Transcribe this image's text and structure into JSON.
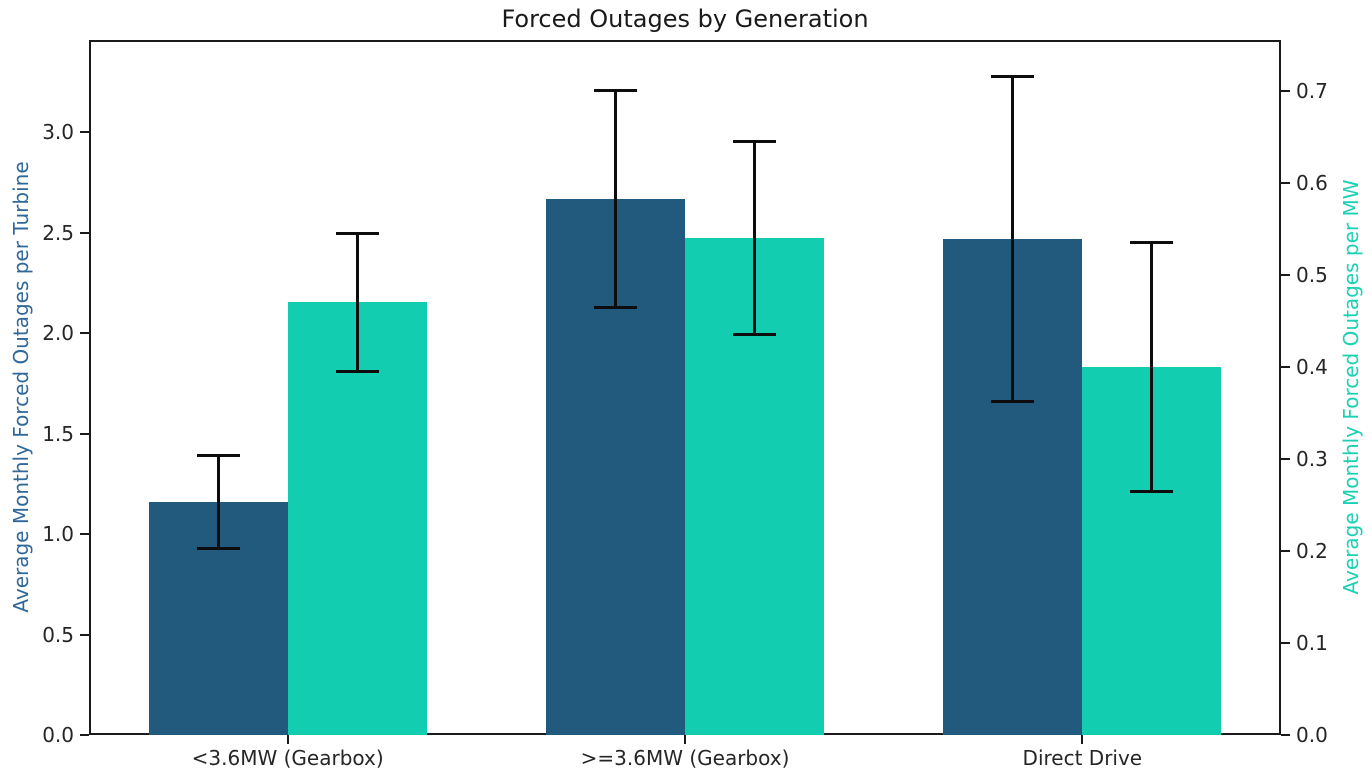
{
  "chart_data": {
    "type": "bar",
    "title": "Forced Outages by Generation",
    "categories": [
      "<3.6MW (Gearbox)",
      ">=3.6MW (Gearbox)",
      "Direct Drive"
    ],
    "series": [
      {
        "name": "Average Monthly Forced Outages per Turbine",
        "axis": "left",
        "color": "#225A7D",
        "values": [
          1.16,
          2.67,
          2.47
        ],
        "errors": [
          0.23,
          0.54,
          0.81
        ]
      },
      {
        "name": "Average Monthly Forced Outages per MW",
        "axis": "right",
        "color": "#13CDB0",
        "values": [
          0.47,
          0.54,
          0.4
        ],
        "errors": [
          0.075,
          0.105,
          0.135
        ]
      }
    ],
    "left_axis": {
      "label": "Average Monthly Forced Outages per Turbine",
      "label_color": "#30689A",
      "tick_labels": [
        "0.0",
        "0.5",
        "1.0",
        "1.5",
        "2.0",
        "2.5",
        "3.0"
      ],
      "min": 0,
      "max": 3.46
    },
    "right_axis": {
      "label": "Average Monthly Forced Outages per MW",
      "label_color": "#1BD1B5",
      "tick_labels": [
        "0.0",
        "0.1",
        "0.2",
        "0.3",
        "0.4",
        "0.5",
        "0.6",
        "0.7"
      ],
      "min": 0,
      "max": 0.755
    },
    "error_bar_color": "#0d0d0d",
    "bar_group_width_fraction": 0.35,
    "grid": false,
    "legend": "none"
  }
}
